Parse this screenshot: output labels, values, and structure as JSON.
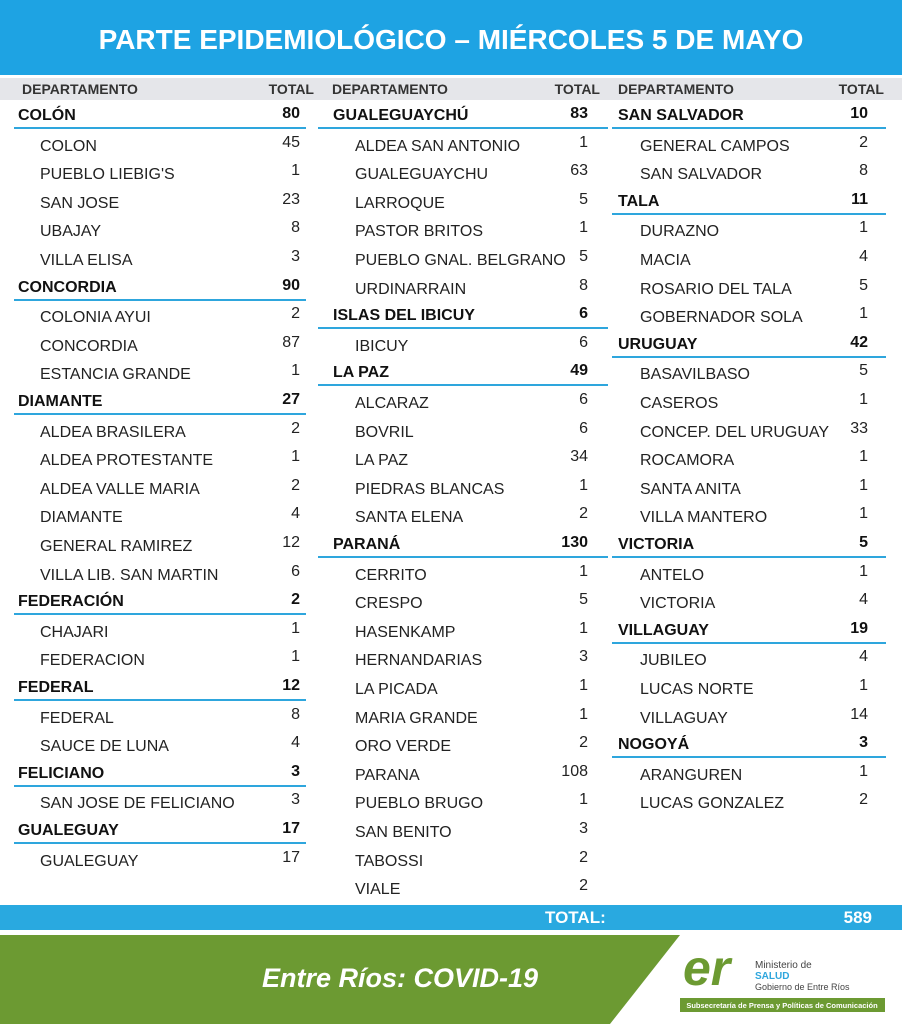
{
  "header": {
    "title": "PARTE EPIDEMIOLÓGICO – MIÉRCOLES 5 DE MAYO"
  },
  "column_headers": [
    {
      "department": "DEPARTAMENTO",
      "total": "TOTAL"
    },
    {
      "department": "DEPARTAMENTO",
      "total": "TOTAL"
    },
    {
      "department": "DEPARTAMENTO",
      "total": "TOTAL"
    }
  ],
  "columns": [
    {
      "departments": [
        {
          "name": "COLÓN",
          "total": 80,
          "localities": [
            {
              "name": "COLON",
              "total": 45
            },
            {
              "name": "PUEBLO LIEBIG'S",
              "total": 1
            },
            {
              "name": "SAN JOSE",
              "total": 23
            },
            {
              "name": "UBAJAY",
              "total": 8
            },
            {
              "name": "VILLA ELISA",
              "total": 3
            }
          ]
        },
        {
          "name": "CONCORDIA",
          "total": 90,
          "localities": [
            {
              "name": "COLONIA AYUI",
              "total": 2
            },
            {
              "name": "CONCORDIA",
              "total": 87
            },
            {
              "name": "ESTANCIA GRANDE",
              "total": 1
            }
          ]
        },
        {
          "name": "DIAMANTE",
          "total": 27,
          "localities": [
            {
              "name": "ALDEA BRASILERA",
              "total": 2
            },
            {
              "name": "ALDEA PROTESTANTE",
              "total": 1
            },
            {
              "name": "ALDEA VALLE MARIA",
              "total": 2
            },
            {
              "name": "DIAMANTE",
              "total": 4
            },
            {
              "name": "GENERAL RAMIREZ",
              "total": 12
            },
            {
              "name": "VILLA LIB. SAN MARTIN",
              "total": 6
            }
          ]
        },
        {
          "name": "FEDERACIÓN",
          "total": 2,
          "localities": [
            {
              "name": "CHAJARI",
              "total": 1
            },
            {
              "name": "FEDERACION",
              "total": 1
            }
          ]
        },
        {
          "name": "FEDERAL",
          "total": 12,
          "localities": [
            {
              "name": "FEDERAL",
              "total": 8
            },
            {
              "name": "SAUCE DE LUNA",
              "total": 4
            }
          ]
        },
        {
          "name": "FELICIANO",
          "total": 3,
          "localities": [
            {
              "name": "SAN JOSE DE FELICIANO",
              "total": 3
            }
          ]
        },
        {
          "name": "GUALEGUAY",
          "total": 17,
          "localities": [
            {
              "name": "GUALEGUAY",
              "total": 17
            }
          ]
        }
      ]
    },
    {
      "departments": [
        {
          "name": "GUALEGUAYCHÚ",
          "total": 83,
          "localities": [
            {
              "name": "ALDEA SAN ANTONIO",
              "total": 1
            },
            {
              "name": "GUALEGUAYCHU",
              "total": 63
            },
            {
              "name": "LARROQUE",
              "total": 5
            },
            {
              "name": "PASTOR BRITOS",
              "total": 1
            },
            {
              "name": "PUEBLO GNAL. BELGRANO",
              "total": 5
            },
            {
              "name": "URDINARRAIN",
              "total": 8
            }
          ]
        },
        {
          "name": "ISLAS DEL IBICUY",
          "total": 6,
          "localities": [
            {
              "name": "IBICUY",
              "total": 6
            }
          ]
        },
        {
          "name": "LA PAZ",
          "total": 49,
          "localities": [
            {
              "name": "ALCARAZ",
              "total": 6
            },
            {
              "name": "BOVRIL",
              "total": 6
            },
            {
              "name": "LA PAZ",
              "total": 34
            },
            {
              "name": "PIEDRAS BLANCAS",
              "total": 1
            },
            {
              "name": "SANTA ELENA",
              "total": 2
            }
          ]
        },
        {
          "name": "PARANÁ",
          "total": 130,
          "localities": [
            {
              "name": "CERRITO",
              "total": 1
            },
            {
              "name": "CRESPO",
              "total": 5
            },
            {
              "name": "HASENKAMP",
              "total": 1
            },
            {
              "name": "HERNANDARIAS",
              "total": 3
            },
            {
              "name": "LA PICADA",
              "total": 1
            },
            {
              "name": "MARIA GRANDE",
              "total": 1
            },
            {
              "name": "ORO VERDE",
              "total": 2
            },
            {
              "name": "PARANA",
              "total": 108
            },
            {
              "name": "PUEBLO BRUGO",
              "total": 1
            },
            {
              "name": "SAN BENITO",
              "total": 3
            },
            {
              "name": "TABOSSI",
              "total": 2
            },
            {
              "name": "VIALE",
              "total": 2
            }
          ]
        }
      ]
    },
    {
      "departments": [
        {
          "name": "SAN SALVADOR",
          "total": 10,
          "localities": [
            {
              "name": "GENERAL CAMPOS",
              "total": 2
            },
            {
              "name": "SAN SALVADOR",
              "total": 8
            }
          ]
        },
        {
          "name": "TALA",
          "total": 11,
          "localities": [
            {
              "name": "DURAZNO",
              "total": 1
            },
            {
              "name": "MACIA",
              "total": 4
            },
            {
              "name": "ROSARIO DEL TALA",
              "total": 5
            },
            {
              "name": "GOBERNADOR SOLA",
              "total": 1
            }
          ]
        },
        {
          "name": "URUGUAY",
          "total": 42,
          "localities": [
            {
              "name": "BASAVILBASO",
              "total": 5
            },
            {
              "name": "CASEROS",
              "total": 1
            },
            {
              "name": "CONCEP. DEL URUGUAY",
              "total": 33
            },
            {
              "name": "ROCAMORA",
              "total": 1
            },
            {
              "name": "SANTA ANITA",
              "total": 1
            },
            {
              "name": "VILLA MANTERO",
              "total": 1
            }
          ]
        },
        {
          "name": "VICTORIA",
          "total": 5,
          "localities": [
            {
              "name": "ANTELO",
              "total": 1
            },
            {
              "name": "VICTORIA",
              "total": 4
            }
          ]
        },
        {
          "name": "VILLAGUAY",
          "total": 19,
          "localities": [
            {
              "name": "JUBILEO",
              "total": 4
            },
            {
              "name": "LUCAS NORTE",
              "total": 1
            },
            {
              "name": "VILLAGUAY",
              "total": 14
            }
          ]
        },
        {
          "name": "NOGOYÁ",
          "total": 3,
          "localities": [
            {
              "name": "ARANGUREN",
              "total": 1
            },
            {
              "name": "LUCAS GONZALEZ",
              "total": 2
            }
          ]
        }
      ]
    }
  ],
  "grand_total": {
    "label": "TOTAL:",
    "value": 589
  },
  "footer": {
    "slogan": "Entre Ríos: COVID-19",
    "logo_mark": "er",
    "ministry_line1": "Ministerio de",
    "ministry_line2": "SALUD",
    "ministry_line3": "Gobierno de Entre Ríos",
    "subsecretariat": "Subsecretaría de Prensa y Políticas de Comunicación"
  }
}
